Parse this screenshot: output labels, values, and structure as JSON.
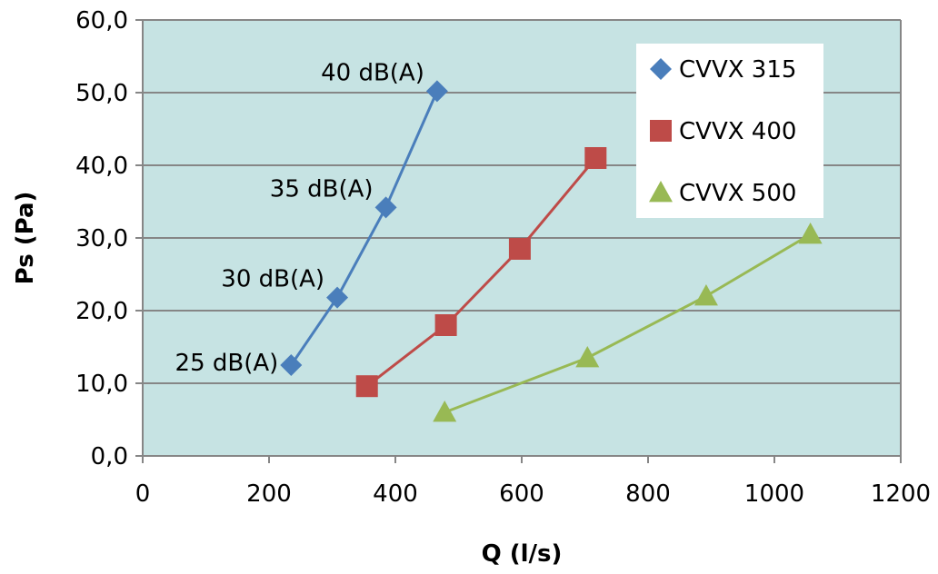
{
  "chart_data": {
    "type": "line",
    "title": "",
    "xlabel": "Q (l/s)",
    "ylabel": "Ps (Pa)",
    "xlim": [
      0,
      1200
    ],
    "ylim": [
      0,
      60
    ],
    "x_ticks": [
      0,
      200,
      400,
      600,
      800,
      1000,
      1200
    ],
    "x_tick_labels": [
      "0",
      "200",
      "400",
      "600",
      "800",
      "1000",
      "1200"
    ],
    "y_ticks": [
      0,
      10,
      20,
      30,
      40,
      50,
      60
    ],
    "y_tick_labels": [
      "0,0",
      "10,0",
      "20,0",
      "30,0",
      "40,0",
      "50,0",
      "60,0"
    ],
    "grid": "horizontal",
    "plot_background": "#c6e3e3",
    "legend_position": "top-right",
    "series": [
      {
        "name": "CVVX 315",
        "color": "#4a7ebb",
        "marker": "diamond",
        "points": [
          [
            235,
            12.5
          ],
          [
            308,
            21.8
          ],
          [
            385,
            34.2
          ],
          [
            466,
            50.2
          ]
        ]
      },
      {
        "name": "CVVX 400",
        "color": "#be4b48",
        "marker": "square",
        "points": [
          [
            355,
            9.6
          ],
          [
            480,
            18.0
          ],
          [
            597,
            28.5
          ],
          [
            717,
            41.0
          ]
        ]
      },
      {
        "name": "CVVX 500",
        "color": "#98b954",
        "marker": "triangle",
        "points": [
          [
            478,
            6.0
          ],
          [
            704,
            13.5
          ],
          [
            892,
            22.0
          ],
          [
            1057,
            30.5
          ]
        ]
      }
    ],
    "annotations": [
      {
        "text": "25 dB(A)",
        "x": 235,
        "y": 12.5
      },
      {
        "text": "30 dB(A)",
        "x": 308,
        "y": 21.8
      },
      {
        "text": "35 dB(A)",
        "x": 385,
        "y": 34.2
      },
      {
        "text": "40 dB(A)",
        "x": 466,
        "y": 50.2
      }
    ]
  }
}
